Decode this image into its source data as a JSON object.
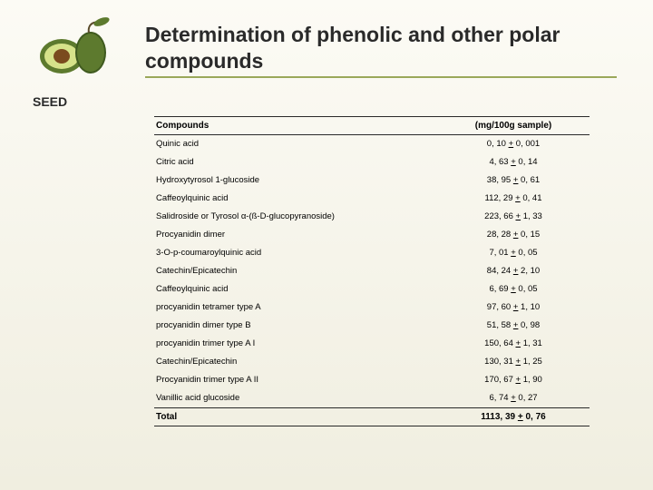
{
  "title": "Determination of phenolic and other polar compounds",
  "section_label": "SEED",
  "table": {
    "headers": {
      "compound": "Compounds",
      "value": "(mg/100g sample)"
    },
    "rows": [
      {
        "name": "Quinic acid",
        "value": "0, 10 ± 0, 001"
      },
      {
        "name": "Citric acid",
        "value": "4, 63 ± 0, 14"
      },
      {
        "name": "Hydroxytyrosol 1-glucoside",
        "value": "38, 95 ± 0, 61"
      },
      {
        "name": "Caffeoylquinic acid",
        "value": "112, 29 ± 0, 41"
      },
      {
        "name": "Salidroside or Tyrosol α-(ß-D-glucopyranoside)",
        "value": "223, 66 ± 1, 33"
      },
      {
        "name": "Procyanidin dimer",
        "value": "28, 28 ± 0, 15"
      },
      {
        "name": "3-O-p-coumaroylquinic acid",
        "value": "7, 01 ± 0, 05"
      },
      {
        "name": "Catechin/Epicatechin",
        "value": "84, 24 ± 2, 10"
      },
      {
        "name": "Caffeoylquinic acid",
        "value": "6, 69 ± 0, 05"
      },
      {
        "name": "procyanidin tetramer type A",
        "value": "97, 60 ± 1, 10"
      },
      {
        "name": "procyanidin dimer type B",
        "value": "51, 58 ± 0, 98"
      },
      {
        "name": "procyanidin trimer type A I",
        "value": "150, 64 ± 1, 31"
      },
      {
        "name": "Catechin/Epicatechin",
        "value": "130, 31 ± 1, 25"
      },
      {
        "name": "Procyanidin trimer type A II",
        "value": "170, 67 ± 1, 90"
      },
      {
        "name": "Vanillic acid glucoside",
        "value": "6, 74 ± 0, 27"
      }
    ],
    "total": {
      "name": "Total",
      "value": "1113, 39 ± 0, 76"
    }
  },
  "colors": {
    "rule": "#9aa85a",
    "text": "#2a2a2a",
    "bg_top": "#fcfbf5",
    "bg_bottom": "#f0eee0"
  }
}
